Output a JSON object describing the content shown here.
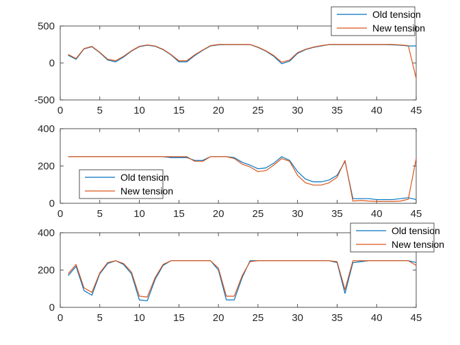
{
  "colors": {
    "old": "#0072BD",
    "new": "#D95319",
    "axis": "#262626",
    "background": "#ffffff"
  },
  "chart_data": [
    {
      "type": "line",
      "xlim": [
        0,
        45
      ],
      "ylim": [
        -500,
        500
      ],
      "xticks": [
        "0",
        "5",
        "10",
        "15",
        "20",
        "25",
        "30",
        "35",
        "40",
        "45"
      ],
      "yticks": [
        "500",
        "0",
        "-500"
      ],
      "legend_position": "top-right",
      "legend": [
        "Old tension",
        "New tension"
      ],
      "x": [
        1,
        2,
        3,
        4,
        5,
        6,
        7,
        8,
        9,
        10,
        11,
        12,
        13,
        14,
        15,
        16,
        17,
        18,
        19,
        20,
        21,
        22,
        23,
        24,
        25,
        26,
        27,
        28,
        29,
        30,
        31,
        32,
        33,
        34,
        35,
        36,
        37,
        38,
        39,
        40,
        41,
        42,
        43,
        44,
        45
      ],
      "series": [
        {
          "name": "Old tension",
          "values": [
            105,
            50,
            190,
            220,
            140,
            40,
            15,
            80,
            160,
            220,
            240,
            225,
            180,
            110,
            15,
            15,
            100,
            170,
            230,
            245,
            248,
            248,
            248,
            248,
            210,
            160,
            90,
            -10,
            25,
            130,
            180,
            210,
            230,
            248,
            248,
            248,
            248,
            248,
            248,
            248,
            248,
            245,
            240,
            230,
            230
          ]
        },
        {
          "name": "New tension",
          "values": [
            115,
            60,
            195,
            225,
            145,
            50,
            30,
            90,
            165,
            225,
            245,
            230,
            185,
            115,
            30,
            30,
            110,
            175,
            235,
            250,
            250,
            250,
            250,
            250,
            215,
            165,
            100,
            10,
            40,
            140,
            185,
            215,
            235,
            250,
            250,
            250,
            250,
            250,
            250,
            250,
            250,
            250,
            245,
            235,
            -210
          ]
        }
      ]
    },
    {
      "type": "line",
      "xlim": [
        0,
        45
      ],
      "ylim": [
        0,
        400
      ],
      "xticks": [
        "0",
        "5",
        "10",
        "15",
        "20",
        "25",
        "30",
        "35",
        "40",
        "45"
      ],
      "yticks": [
        "400",
        "200",
        "0"
      ],
      "legend_position": "bottom-left",
      "legend": [
        "Old tension",
        "New tension"
      ],
      "x": [
        1,
        2,
        3,
        4,
        5,
        6,
        7,
        8,
        9,
        10,
        11,
        12,
        13,
        14,
        15,
        16,
        17,
        18,
        19,
        20,
        21,
        22,
        23,
        24,
        25,
        26,
        27,
        28,
        29,
        30,
        31,
        32,
        33,
        34,
        35,
        36,
        37,
        38,
        39,
        40,
        41,
        42,
        43,
        44,
        45
      ],
      "series": [
        {
          "name": "Old tension",
          "values": [
            250,
            250,
            250,
            250,
            250,
            250,
            250,
            250,
            250,
            250,
            250,
            250,
            250,
            245,
            245,
            245,
            230,
            230,
            250,
            250,
            250,
            245,
            220,
            205,
            185,
            190,
            215,
            250,
            230,
            170,
            130,
            115,
            115,
            125,
            150,
            225,
            25,
            25,
            25,
            20,
            20,
            20,
            25,
            30,
            20
          ]
        },
        {
          "name": "New tension",
          "values": [
            250,
            250,
            250,
            250,
            250,
            250,
            250,
            250,
            250,
            250,
            250,
            250,
            250,
            250,
            250,
            250,
            225,
            225,
            250,
            250,
            250,
            240,
            210,
            195,
            170,
            175,
            205,
            240,
            225,
            150,
            110,
            98,
            98,
            110,
            140,
            230,
            12,
            15,
            12,
            10,
            10,
            10,
            12,
            22,
            240
          ]
        }
      ]
    },
    {
      "type": "line",
      "xlim": [
        0,
        45
      ],
      "ylim": [
        0,
        400
      ],
      "xticks": [
        "0",
        "5",
        "10",
        "15",
        "20",
        "25",
        "30",
        "35",
        "40",
        "45"
      ],
      "yticks": [
        "400",
        "200",
        "0"
      ],
      "legend_position": "top-right",
      "legend": [
        "Old tension",
        "New tension"
      ],
      "x": [
        1,
        2,
        3,
        4,
        5,
        6,
        7,
        8,
        9,
        10,
        11,
        12,
        13,
        14,
        15,
        16,
        17,
        18,
        19,
        20,
        21,
        22,
        23,
        24,
        25,
        26,
        27,
        28,
        29,
        30,
        31,
        32,
        33,
        34,
        35,
        36,
        37,
        38,
        39,
        40,
        41,
        42,
        43,
        44,
        45
      ],
      "series": [
        {
          "name": "Old tension",
          "values": [
            170,
            220,
            90,
            65,
            180,
            235,
            250,
            230,
            180,
            40,
            35,
            150,
            225,
            250,
            250,
            250,
            250,
            250,
            250,
            200,
            40,
            40,
            160,
            250,
            250,
            250,
            250,
            250,
            250,
            250,
            250,
            250,
            250,
            250,
            240,
            75,
            240,
            245,
            250,
            250,
            250,
            250,
            250,
            250,
            240
          ]
        },
        {
          "name": "New tension",
          "values": [
            180,
            230,
            105,
            80,
            185,
            240,
            250,
            235,
            190,
            60,
            55,
            160,
            230,
            250,
            250,
            250,
            250,
            250,
            250,
            210,
            60,
            60,
            170,
            245,
            250,
            250,
            250,
            250,
            250,
            250,
            250,
            250,
            250,
            250,
            245,
            95,
            250,
            250,
            250,
            250,
            250,
            250,
            250,
            250,
            225
          ]
        }
      ]
    }
  ]
}
